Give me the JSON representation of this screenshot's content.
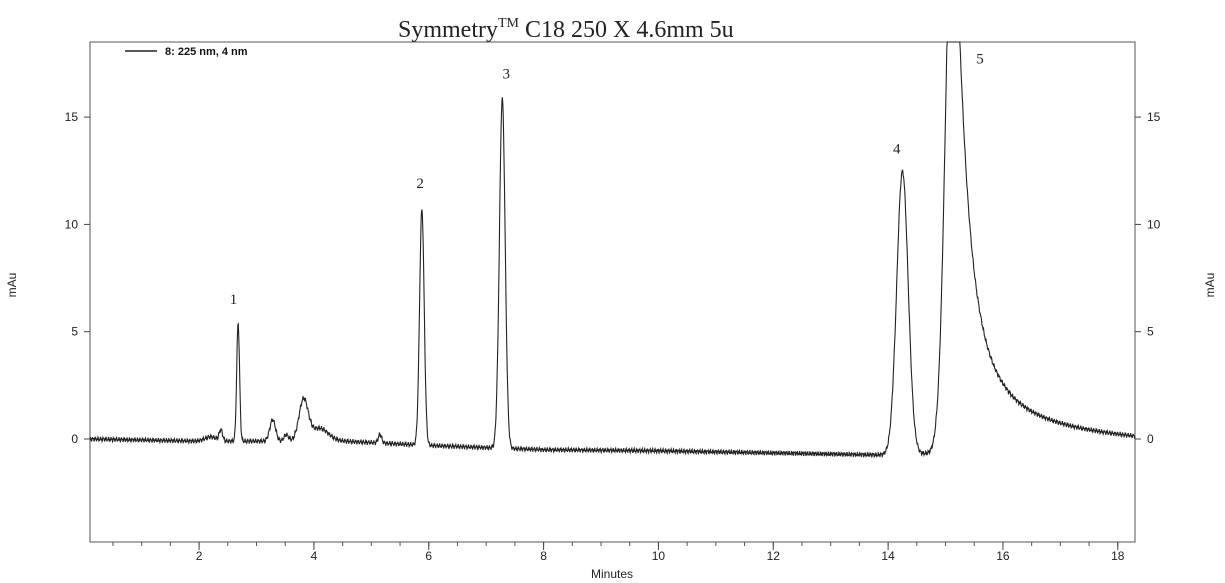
{
  "chart_data": {
    "type": "line",
    "title": "Symmetry",
    "title_superscript": "TM",
    "title_rest": " C18  250 X 4.6mm 5u",
    "xlabel": "Minutes",
    "ylabel_left": "mAu",
    "ylabel_right": "mAu",
    "xlim": [
      0.1,
      18.3
    ],
    "ylim_left": [
      -4.8,
      18.5
    ],
    "ylim_right": [
      -4.8,
      18.5
    ],
    "left_ticks": [
      0,
      5,
      10,
      15
    ],
    "right_ticks": [
      0,
      5,
      10,
      15
    ],
    "x_ticks": [
      2,
      4,
      6,
      8,
      10,
      12,
      14,
      16,
      18
    ],
    "x_minor_step": 0.5,
    "grid": false,
    "legend": {
      "position": "top-left",
      "label": "8: 225 nm, 4 nm"
    },
    "series": [
      {
        "name": "8: 225 nm, 4 nm",
        "baseline": [
          [
            0.1,
            0.0
          ],
          [
            2.0,
            -0.1
          ],
          [
            4.5,
            -0.1
          ],
          [
            6.0,
            -0.3
          ],
          [
            8.0,
            -0.5
          ],
          [
            10.0,
            -0.55
          ],
          [
            12.0,
            -0.65
          ],
          [
            14.0,
            -0.75
          ],
          [
            16.0,
            -0.55
          ],
          [
            18.3,
            -0.8
          ]
        ],
        "peaks": [
          {
            "rt": 2.2,
            "height": 0.2,
            "width": 0.1
          },
          {
            "rt": 2.38,
            "height": 0.5,
            "width": 0.03
          },
          {
            "rt": 2.68,
            "height": 5.5,
            "width": 0.025
          },
          {
            "rt": 3.28,
            "height": 1.0,
            "width": 0.05
          },
          {
            "rt": 3.52,
            "height": 0.3,
            "width": 0.04
          },
          {
            "rt": 3.82,
            "height": 1.9,
            "width": 0.08
          },
          {
            "rt": 4.1,
            "height": 0.6,
            "width": 0.15
          },
          {
            "rt": 5.15,
            "height": 0.4,
            "width": 0.03
          },
          {
            "rt": 5.88,
            "height": 11.0,
            "width": 0.04
          },
          {
            "rt": 7.28,
            "height": 16.3,
            "width": 0.05
          },
          {
            "rt": 14.25,
            "height": 13.2,
            "width": 0.1
          },
          {
            "rt": 15.12,
            "height": 26.0,
            "width": 0.12,
            "tail": 0.35
          }
        ],
        "peak_labels": [
          {
            "text": "1",
            "x": 2.6,
            "y": 6.3
          },
          {
            "text": "2",
            "x": 5.85,
            "y": 11.7
          },
          {
            "text": "3",
            "x": 7.35,
            "y": 16.8
          },
          {
            "text": "4",
            "x": 14.15,
            "y": 13.3
          },
          {
            "text": "5",
            "x": 15.6,
            "y": 17.5
          }
        ]
      }
    ]
  }
}
